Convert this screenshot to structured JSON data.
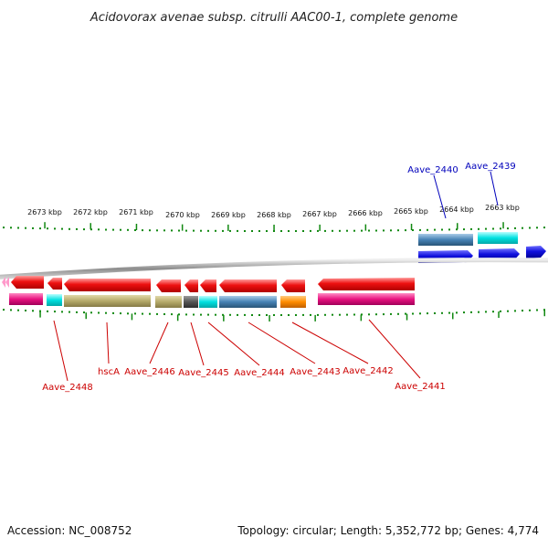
{
  "title": "Acidovorax avenae subsp. citrulli AAC00-1, complete genome",
  "kbp_labels": [
    "2673 kbp",
    "2672 kbp",
    "2671 kbp",
    "2670 kbp",
    "2669 kbp",
    "2668 kbp",
    "2667 kbp",
    "2666 kbp",
    "2665 kbp",
    "2664 kbp",
    "2663 kbp"
  ],
  "top_gene_labels": [
    "Aave_2440",
    "Aave_2439"
  ],
  "bottom_gene_labels": [
    "Aave_2448",
    "hscA",
    "Aave_2446",
    "Aave_2445",
    "Aave_2444",
    "Aave_2443",
    "Aave_2442",
    "Aave_2441"
  ],
  "colors": {
    "forward_arrow": "#1010dd",
    "reverse_arrow": "#ee1111",
    "tick": "#118811",
    "backbone": "#888888",
    "top_label": "#0000bb",
    "bottom_label": "#cc0000",
    "magenta": "#e8127f",
    "cyan": "#00e0e0",
    "olive": "#b5aa6a",
    "dark_gray": "#555555",
    "steel_blue": "#4682b4",
    "orange": "#ff8c00"
  },
  "footer": {
    "accession": "Accession: NC_008752",
    "summary": "Topology: circular; Length: 5,352,772 bp; Genes: 4,774"
  }
}
